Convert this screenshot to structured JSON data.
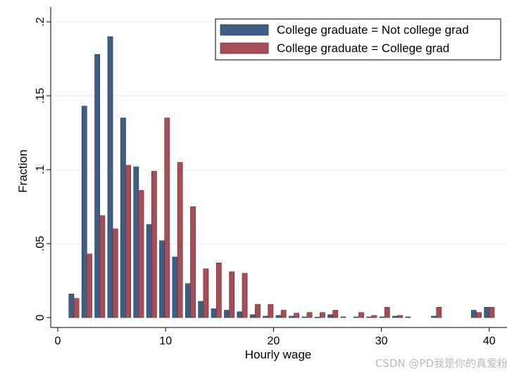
{
  "chart_data": {
    "type": "bar",
    "title": "",
    "xlabel": "Hourly wage",
    "ylabel": "Fraction",
    "xlim": [
      -0.5,
      41
    ],
    "ylim": [
      0,
      0.2
    ],
    "x_ticks": [
      0,
      10,
      20,
      30,
      40
    ],
    "x_tick_labels": [
      "0",
      "10",
      "20",
      "30",
      "40"
    ],
    "y_ticks": [
      0,
      0.05,
      0.1,
      0.15,
      0.2
    ],
    "y_tick_labels": [
      "0",
      ".05",
      ".1",
      ".15",
      ".2"
    ],
    "grid": true,
    "legend_position": "top-right",
    "series": [
      {
        "name": "College graduate = Not college grad",
        "color": "#3e5f83",
        "x": [
          1.5,
          2.7,
          3.9,
          5.1,
          6.3,
          7.5,
          8.7,
          9.9,
          11.1,
          12.3,
          13.5,
          14.7,
          15.9,
          17.1,
          18.3,
          19.5,
          20.7,
          21.9,
          23.1,
          24.3,
          25.5,
          26.7,
          27.9,
          29.1,
          30.3,
          31.5,
          32.7,
          35.1,
          38.8,
          40.0
        ],
        "values": [
          0.016,
          0.143,
          0.178,
          0.19,
          0.135,
          0.102,
          0.063,
          0.052,
          0.041,
          0.023,
          0.011,
          0.006,
          0.005,
          0.004,
          0.002,
          0.001,
          0.0015,
          0.001,
          0.0005,
          0.0003,
          0.002,
          0.0005,
          0.0005,
          0.0005,
          0.0005,
          0.001,
          0.0005,
          0.001,
          0.005,
          0.007
        ]
      },
      {
        "name": "College graduate = College grad",
        "color": "#a64e57",
        "x": [
          1.5,
          2.7,
          3.9,
          5.1,
          6.3,
          7.5,
          8.7,
          9.9,
          11.1,
          12.3,
          13.5,
          14.7,
          15.9,
          17.1,
          18.3,
          19.5,
          20.7,
          21.9,
          23.1,
          24.3,
          25.5,
          26.7,
          27.9,
          29.1,
          30.3,
          31.5,
          32.7,
          35.1,
          38.8,
          40.0
        ],
        "values": [
          0.013,
          0.043,
          0.069,
          0.06,
          0.103,
          0.086,
          0.099,
          0.135,
          0.105,
          0.075,
          0.033,
          0.037,
          0.031,
          0.03,
          0.009,
          0.009,
          0.005,
          0.003,
          0.0035,
          0.0035,
          0.005,
          0.0,
          0.0035,
          0.0015,
          0.007,
          0.0015,
          0.0,
          0.007,
          0.0035,
          0.007
        ]
      }
    ]
  },
  "watermark": "CSDN @PD我是你的真爱粉"
}
